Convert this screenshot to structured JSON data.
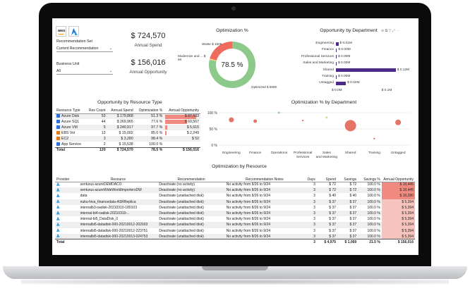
{
  "filters": {
    "logo_aws": "aws",
    "recommendation_set_label": "Recommendation Set",
    "recommendation_set_value": "Current Recommendation",
    "business_unit_label": "Business Unit",
    "business_unit_value": "All"
  },
  "kpis": {
    "annual_spend_value": "$ 724,570",
    "annual_spend_label": "Annual Spend",
    "annual_opportunity_value": "$ 156,016",
    "annual_opportunity_label": "Annual Opportunity"
  },
  "donut": {
    "title": "Optimization %",
    "center_label": "78.5 %",
    "labels": {
      "waste": "Waste $ 150K",
      "modernize": "Modernize and ... $ 6K",
      "optimized": "Optimized $ 569K"
    },
    "colors": {
      "optimized": "#8cc98a",
      "waste": "#ef6b5e",
      "modernize": "#f3d77e"
    }
  },
  "dept": {
    "title": "Opportunity by Department",
    "tools": "⊘ ⧉ ▽ ⤢ ⋯",
    "items": [
      {
        "name": "Engineering",
        "value_label": "$ 0.01M",
        "value": 0.005
      },
      {
        "name": "Finance",
        "value_label": "$ 0.00M",
        "value": 0.002
      },
      {
        "name": "Professional Services",
        "value_label": "$ 0.00M",
        "value": 0.001
      },
      {
        "name": "Sales and Marketing",
        "value_label": "$ 0.00M",
        "value": 0.001
      },
      {
        "name": "Shared",
        "value_label": "$ 0.12M",
        "value": 0.12
      },
      {
        "name": "Training",
        "value_label": "$ 0.00M",
        "value": 0.0
      },
      {
        "name": "Untagged",
        "value_label": "$ 0.02M",
        "value": 0.02
      }
    ],
    "axis": [
      "$ 0.0M",
      "$ 0.1M"
    ]
  },
  "resource_type": {
    "title": "Opportunity by Resource Type",
    "headers": [
      "Resource Type",
      "Res Count",
      "Annual Spend",
      "Optimization %",
      "Annual Opportunity"
    ],
    "rows": [
      {
        "name": "Azure Disk",
        "count": "53",
        "spend": "$ 179,868",
        "opt": "51.3 %",
        "opp": "$ 87,533",
        "opp_pct": 100
      },
      {
        "name": "Azure SQL",
        "count": "44",
        "spend": "$ 269,965",
        "opt": "77.6 %",
        "opp": "$ 60,567",
        "opp_pct": 69
      },
      {
        "name": "Azure VM",
        "count": "5",
        "spend": "$ 240,917",
        "opt": "97.7 %",
        "opp": "$ 5,615",
        "opp_pct": 6
      },
      {
        "name": "EBS Vol",
        "count": "13",
        "spend": "$ 15,002",
        "opt": "85.0 %",
        "opp": "$ 2,249",
        "opp_pct": 3
      },
      {
        "name": "EC2",
        "count": "3",
        "spend": "$ 3,280",
        "opt": "98.4 %",
        "opp": "$ 52",
        "opp_pct": 0
      },
      {
        "name": "App Service",
        "count": "2",
        "spend": "$ 15,538",
        "opt": "100.0 %",
        "opp": "",
        "opp_pct": 0
      }
    ],
    "total": {
      "name": "Total",
      "count": "120",
      "spend": "$ 724,570",
      "opt": "78.5 %",
      "opp": "$ 156,016"
    }
  },
  "dept_scatter": {
    "title": "Optimization % by Department",
    "yticks": [
      "100 %",
      "50 %",
      "0 %"
    ],
    "categories": [
      "Engineering",
      "Finance",
      "Operations",
      "Professional Services",
      "Sales and Marketing",
      "Shared",
      "Training",
      "Untagged"
    ],
    "points": [
      {
        "cat": 0,
        "y": 78,
        "size": 3.5
      },
      {
        "cat": 1,
        "y": 74,
        "size": 2.5
      },
      {
        "cat": 2,
        "y": 100,
        "size": 1.5
      },
      {
        "cat": 3,
        "y": 76,
        "size": 1.2
      },
      {
        "cat": 4,
        "y": 85,
        "size": 1.5
      },
      {
        "cat": 5,
        "y": 60,
        "size": 8
      },
      {
        "cat": 6,
        "y": 20,
        "size": 1.2
      },
      {
        "cat": 7,
        "y": 70,
        "size": 4
      }
    ]
  },
  "resources": {
    "title": "Optimization by Resource",
    "headers": [
      "Provider",
      "Resource",
      "Recommendation",
      "Recommendation Notes",
      "Days",
      "Spend",
      "Savings",
      "Savings %",
      "Annual Opportunity"
    ],
    "rows": [
      {
        "res": "senturus-azureDEMDACO",
        "rec": "Deactivate (no activity)",
        "notes": "No activity from 8/26 to 9/24",
        "days": "3",
        "spend": "$ 72",
        "sav": "$ 72",
        "pct": "100.0 %",
        "opp": "$ 10,445",
        "hi": true
      },
      {
        "res": "senturus-azureWideWorldImportersDW",
        "rec": "Deactivate (no activity)",
        "notes": "No activity from 8/26 to 9/24",
        "days": "3",
        "spend": "$ 72",
        "sav": "$ 72",
        "pct": "100.0 %",
        "opp": "$ 10,445",
        "hi": true
      },
      {
        "res": "data",
        "rec": "Deactivate (unattached disk)",
        "notes": "No activity from 8/26 to 9/24",
        "days": "3",
        "spend": "$ 40",
        "sav": "$ 40",
        "pct": "100.0 %",
        "opp": "$ 10,280",
        "hi": true
      },
      {
        "res": "nuku-hiva_financedata-ASRReplica",
        "rec": "Deactivate (unattached disk)",
        "notes": "No activity from 8/26 to 9/24",
        "days": "3",
        "spend": "$ 37",
        "sav": "$ 37",
        "pct": "100.0 %",
        "opp": "$ 5,394",
        "hi": false
      },
      {
        "res": "internalb3-oadisk-20210310-180103",
        "rec": "Deactivate (unattached disk)",
        "notes": "No activity from 8/26 to 9/24",
        "days": "3",
        "spend": "$ 37",
        "sav": "$ 37",
        "pct": "100.0 %",
        "opp": "$ 5,394",
        "hi": false
      },
      {
        "res": "internal-bi4-oadisk-20210310-..",
        "rec": "Deactivate (unattached disk)",
        "notes": "No activity from 8/26 to 9/24",
        "days": "3",
        "spend": "$ 37",
        "sav": "$ 37",
        "pct": "100.0 %",
        "opp": "$ 5,394",
        "hi": false
      },
      {
        "res": "internal-bi5_DataDisk_0",
        "rec": "Deactivate (unattached disk)",
        "notes": "No activity from 8/26 to 9/24",
        "days": "3",
        "spend": "$ 37",
        "sav": "$ 37",
        "pct": "100.0 %",
        "opp": "$ 5,394",
        "hi": false
      },
      {
        "res": "internalbi5-datadisk-000-20210012-202003",
        "rec": "Deactivate (unattached disk)",
        "notes": "No activity from 8/26 to 9/24",
        "days": "3",
        "spend": "$ 37",
        "sav": "$ 37",
        "pct": "100.0 %",
        "opp": "$ 5,394",
        "hi": false
      },
      {
        "res": "internalbi5-datadisk-000-20210012-223751",
        "rec": "Deactivate (unattached disk)",
        "notes": "No activity from 8/26 to 9/24",
        "days": "3",
        "spend": "$ 37",
        "sav": "$ 37",
        "pct": "100.0 %",
        "opp": "$ 5,394",
        "hi": false
      },
      {
        "res": "internalbi5-datadisk-000-20210013-024753",
        "rec": "Deactivate (unattached disk)",
        "notes": "No activity from 8/26 to 9/24",
        "days": "3",
        "spend": "$ 37",
        "sav": "$ 37",
        "pct": "100.0 %",
        "opp": "$ 5,394",
        "hi": false
      }
    ],
    "total": {
      "label": "Total",
      "days": "3",
      "spend": "$ 4,975",
      "sav": "$ 1,069",
      "pct": "21.5 %",
      "opp": "$ 156,016"
    }
  },
  "chart_data": [
    {
      "type": "pie",
      "title": "Optimization %",
      "categories": [
        "Optimized",
        "Waste",
        "Modernize and ..."
      ],
      "values": [
        569,
        150,
        6
      ],
      "units": "$K",
      "center_label": "78.5 %"
    },
    {
      "type": "bar",
      "title": "Opportunity by Department",
      "categories": [
        "Engineering",
        "Finance",
        "Professional Services",
        "Sales and Marketing",
        "Shared",
        "Training",
        "Untagged"
      ],
      "values": [
        0.01,
        0.0,
        0.0,
        0.0,
        0.12,
        0.0,
        0.02
      ],
      "units": "$M",
      "xlim": [
        0,
        0.15
      ]
    },
    {
      "type": "scatter",
      "title": "Optimization % by Department",
      "categories": [
        "Engineering",
        "Finance",
        "Operations",
        "Professional Services",
        "Sales and Marketing",
        "Shared",
        "Training",
        "Untagged"
      ],
      "values": [
        78,
        74,
        100,
        76,
        85,
        60,
        20,
        70
      ],
      "ylim": [
        0,
        100
      ],
      "ylabel": "%"
    }
  ]
}
